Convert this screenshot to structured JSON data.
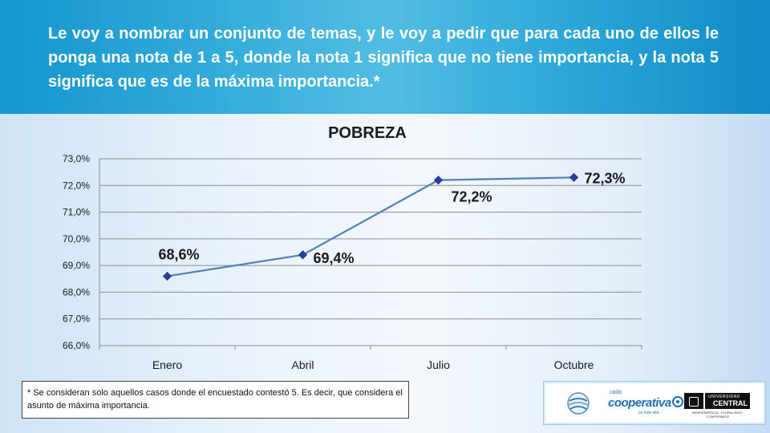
{
  "header": {
    "question": "Le voy a nombrar un conjunto de temas, y le voy a pedir que para cada uno de ellos le ponga una nota de 1 a 5, donde la nota 1 significa que no tiene importancia, y la nota 5 significa que es de la máxima importancia.*"
  },
  "chart_data": {
    "type": "line",
    "title": "POBREZA",
    "categories": [
      "Enero",
      "Abril",
      "Julio",
      "Octubre"
    ],
    "series": [
      {
        "values": [
          68.6,
          69.4,
          72.2,
          72.3
        ],
        "labels": [
          "68,6%",
          "69,4%",
          "72,2%",
          "72,3%"
        ],
        "color": "#4f81bd"
      }
    ],
    "yticks": [
      "66,0%",
      "67,0%",
      "68,0%",
      "69,0%",
      "70,0%",
      "71,0%",
      "72,0%",
      "73,0%"
    ],
    "ylim": [
      66.0,
      73.0
    ],
    "xlabel": "",
    "ylabel": "",
    "grid": true,
    "legend": "none"
  },
  "footnote": "* Se consideran solo aquellos casos donde el encuestado contestó 5. Es decir, que considera el asunto de máxima importancia.",
  "logos": {
    "cooperativa_small": "radio",
    "cooperativa_name": "cooperativa",
    "cooperativa_tagline": "va más allá",
    "ucentral_top": "UNIVERSIDAD",
    "ucentral_name": "CENTRAL",
    "ucentral_motto": "INDEPENDENCIA · PLURALISMO · COMPROMISO"
  },
  "colors": {
    "header_bg": "#2aa6d8",
    "series_line": "#4f81bd",
    "marker": "#2b3f9e"
  }
}
